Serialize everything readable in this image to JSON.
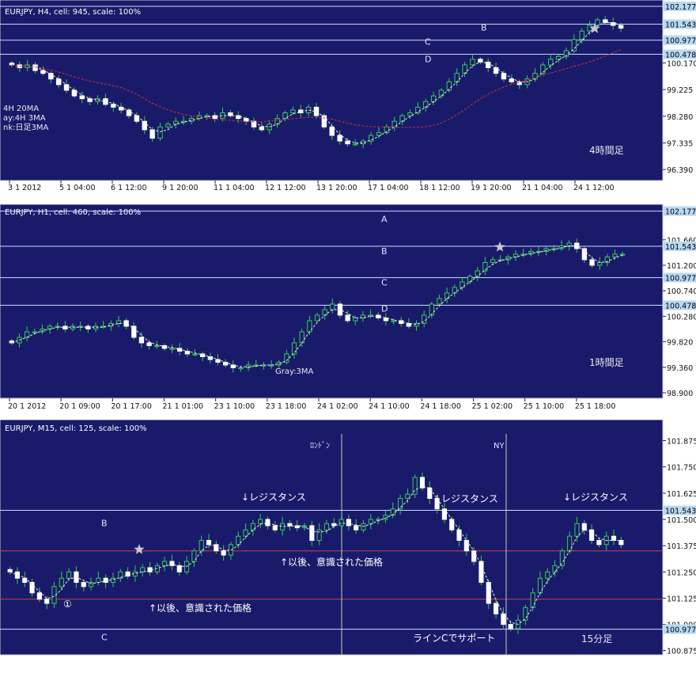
{
  "chart_data": [
    {
      "type": "candlestick",
      "title": "EURJPY, H4, cell: 945, scale: 100%",
      "xlabels": [
        "3 1 2012",
        "5 1 04:00",
        "6 1 12:00",
        "9 1 20:00",
        "11 1 04:00",
        "12 1 12:00",
        "13 1 20:00",
        "17 1 04:00",
        "18 1 12:00",
        "19 1 20:00",
        "21 1 04:00",
        "24 1 12:00"
      ],
      "yticks": [
        "100.170",
        "99.225",
        "98.280",
        "97.335",
        "96.390"
      ],
      "ylim": [
        96.0,
        102.4
      ],
      "levels": [
        {
          "label": "A",
          "value": 102.177,
          "tag": "102.177"
        },
        {
          "label": "B",
          "value": 101.543,
          "tag": "101.543"
        },
        {
          "label": "C",
          "value": 100.977,
          "tag": "100.977"
        },
        {
          "label": "D",
          "value": 100.478,
          "tag": "100.478"
        }
      ],
      "legend_lines": [
        "4H 20MA",
        "ay:4H 3MA",
        "nk:日足3MA"
      ],
      "timeframe_label": "4時間足",
      "closes": [
        100.1,
        100.0,
        100.1,
        99.9,
        99.8,
        99.6,
        99.4,
        99.2,
        99.0,
        98.9,
        98.8,
        98.9,
        98.7,
        98.6,
        98.5,
        98.3,
        98.1,
        97.8,
        97.5,
        97.9,
        98.0,
        98.1,
        98.1,
        98.2,
        98.3,
        98.3,
        98.2,
        98.4,
        98.3,
        98.2,
        98.1,
        97.9,
        97.8,
        98.0,
        98.2,
        98.4,
        98.5,
        98.4,
        98.6,
        98.3,
        97.9,
        97.6,
        97.4,
        97.3,
        97.3,
        97.4,
        97.6,
        97.7,
        97.9,
        98.1,
        98.3,
        98.4,
        98.6,
        98.8,
        99.0,
        99.2,
        99.5,
        99.8,
        100.1,
        100.3,
        100.2,
        100.0,
        99.8,
        99.6,
        99.5,
        99.4,
        99.6,
        99.8,
        100.1,
        100.3,
        100.4,
        100.6,
        101.0,
        101.3,
        101.5,
        101.7,
        101.6,
        101.5,
        101.4
      ]
    },
    {
      "type": "candlestick",
      "title": "EURJPY, H1, cell: 460, scale: 100%",
      "xlabels": [
        "20 1 2012",
        "20 1 09:00",
        "20 1 17:00",
        "21 1 01:00",
        "23 1 10:00",
        "23 1 18:00",
        "24 1 02:00",
        "24 1 10:00",
        "24 1 18:00",
        "25 1 02:00",
        "25 1 10:00",
        "25 1 18:00"
      ],
      "yticks": [
        "101.660",
        "101.200",
        "100.740",
        "100.280",
        "99.820",
        "99.360",
        "98.900"
      ],
      "ylim": [
        98.8,
        102.3
      ],
      "levels": [
        {
          "label": "A",
          "value": 102.177,
          "tag": "102.177"
        },
        {
          "label": "B",
          "value": 101.543,
          "tag": "101.543"
        },
        {
          "label": "C",
          "value": 100.977,
          "tag": "100.977"
        },
        {
          "label": "D",
          "value": 100.478,
          "tag": "100.478"
        }
      ],
      "legend_lines": [
        "Gray:3MA"
      ],
      "timeframe_label": "1時間足",
      "closes": [
        99.8,
        99.9,
        100.0,
        100.0,
        100.05,
        100.1,
        100.1,
        100.05,
        100.1,
        100.1,
        100.05,
        100.1,
        100.1,
        100.15,
        100.2,
        100.1,
        99.9,
        99.8,
        99.75,
        99.75,
        99.7,
        99.7,
        99.65,
        99.6,
        99.6,
        99.55,
        99.5,
        99.45,
        99.4,
        99.35,
        99.35,
        99.4,
        99.4,
        99.4,
        99.4,
        99.45,
        99.6,
        99.8,
        100.0,
        100.2,
        100.3,
        100.4,
        100.5,
        100.3,
        100.2,
        100.25,
        100.3,
        100.3,
        100.25,
        100.2,
        100.2,
        100.15,
        100.1,
        100.15,
        100.3,
        100.5,
        100.6,
        100.7,
        100.8,
        100.9,
        101.0,
        101.1,
        101.25,
        101.3,
        101.3,
        101.35,
        101.4,
        101.4,
        101.45,
        101.45,
        101.5,
        101.5,
        101.55,
        101.6,
        101.5,
        101.3,
        101.2,
        101.25,
        101.35,
        101.4,
        101.4
      ]
    },
    {
      "type": "candlestick",
      "title": "EURJPY, M15, cell: 125, scale: 100%",
      "yticks": [
        "101.875",
        "101.750",
        "101.625",
        "101.500",
        "101.375",
        "101.250",
        "101.125",
        "101.000",
        "100.875"
      ],
      "ylim": [
        100.855,
        101.975
      ],
      "levels": [
        {
          "label": "B",
          "value": 101.543,
          "tag": "101.543"
        },
        {
          "label": "C",
          "value": 100.977,
          "tag": "100.977"
        }
      ],
      "support_lines": [
        101.35,
        101.12
      ],
      "sessions": [
        "ﾛﾝﾄﾞﾝ",
        "NY"
      ],
      "annotations": [
        "↓レジスタンス",
        "↓レジスタンス",
        "↓レジスタンス",
        "↑以後、意識された価格",
        "↑以後、意識された価格",
        "ラインCでサポート",
        "①"
      ],
      "timeframe_label": "15分足",
      "closes": [
        101.25,
        101.22,
        101.2,
        101.15,
        101.12,
        101.1,
        101.18,
        101.22,
        101.25,
        101.2,
        101.18,
        101.2,
        101.22,
        101.2,
        101.22,
        101.25,
        101.23,
        101.25,
        101.27,
        101.25,
        101.28,
        101.3,
        101.28,
        101.25,
        101.3,
        101.35,
        101.4,
        101.38,
        101.35,
        101.33,
        101.38,
        101.42,
        101.45,
        101.48,
        101.5,
        101.47,
        101.45,
        101.48,
        101.47,
        101.46,
        101.47,
        101.4,
        101.45,
        101.48,
        101.47,
        101.5,
        101.47,
        101.45,
        101.48,
        101.5,
        101.5,
        101.52,
        101.55,
        101.6,
        101.62,
        101.7,
        101.65,
        101.6,
        101.55,
        101.5,
        101.45,
        101.4,
        101.35,
        101.3,
        101.2,
        101.1,
        101.05,
        101.0,
        100.98,
        101.02,
        101.08,
        101.15,
        101.22,
        101.25,
        101.28,
        101.35,
        101.42,
        101.48,
        101.45,
        101.4,
        101.38,
        101.42,
        101.4,
        101.38
      ]
    }
  ]
}
